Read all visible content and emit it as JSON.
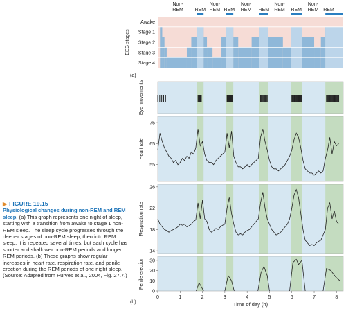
{
  "caption": {
    "figure_label": "FIGURE 19.15",
    "heading": "Physiological changes during non-REM and REM sleep.",
    "body": "(a) This graph represents one night of sleep, starting with a transition from awake to stage 1 non-REM sleep. The sleep cycle progresses through the deeper stages of non-REM sleep, then into REM sleep. It is repeated several times, but each cycle has shorter and shallower non-REM periods and longer REM periods. (b) These graphs show regular increases in heart rate, respiration rate, and penile erection during the REM periods of one night sleep. (Source: Adapted from Purves et al., 2004, Fig. 27.7.)"
  },
  "colors": {
    "rem_band": "#c4dcc0",
    "panel_bg": "#d6e7f2",
    "bar_blue": "#8fb8d9",
    "bar_pink": "#f6dcd6",
    "line": "#222222",
    "rem_bar": "#2a7fc1"
  },
  "chart_data": {
    "type": "line",
    "x_label": "Time of day (h)",
    "x_ticks": [
      0,
      1,
      2,
      3,
      4,
      5,
      6,
      7,
      8
    ],
    "xlim": [
      0,
      8.3
    ],
    "rem_periods": [
      [
        1.75,
        2.05
      ],
      [
        3.05,
        3.38
      ],
      [
        4.55,
        4.95
      ],
      [
        5.95,
        6.45
      ],
      [
        7.5,
        8.3
      ]
    ],
    "nonrem_labels": [
      {
        "x": 0.9,
        "text": "Non-\nREM"
      },
      {
        "x": 2.55,
        "text": "Non-\nREM"
      },
      {
        "x": 3.95,
        "text": "Non-\nREM"
      },
      {
        "x": 5.45,
        "text": "Non-\nREM"
      },
      {
        "x": 6.95,
        "text": "Non-\nREM"
      }
    ],
    "rem_labels": [
      {
        "x": 1.9,
        "text": "REM"
      },
      {
        "x": 3.2,
        "text": "REM"
      },
      {
        "x": 4.75,
        "text": "REM"
      },
      {
        "x": 6.2,
        "text": "REM"
      },
      {
        "x": 7.65,
        "text": "REM"
      }
    ],
    "panel_a": {
      "label": "(a)",
      "y_title": "EEG stages",
      "stages": [
        "Awake",
        "Stage 1",
        "Stage 2",
        "Stage 3",
        "Stage 4"
      ],
      "hypnogram": [
        [
          0,
          0.1,
          0
        ],
        [
          0.1,
          0.2,
          1
        ],
        [
          0.2,
          0.3,
          2
        ],
        [
          0.3,
          0.4,
          3
        ],
        [
          0.4,
          1.3,
          4
        ],
        [
          1.3,
          1.5,
          3
        ],
        [
          1.5,
          1.75,
          2
        ],
        [
          1.75,
          2.05,
          1
        ],
        [
          2.05,
          2.2,
          2
        ],
        [
          2.2,
          2.45,
          3
        ],
        [
          2.45,
          2.85,
          4
        ],
        [
          2.85,
          3.05,
          2
        ],
        [
          3.05,
          3.38,
          1
        ],
        [
          3.38,
          3.6,
          2
        ],
        [
          3.6,
          4.2,
          3
        ],
        [
          4.2,
          4.55,
          2
        ],
        [
          4.55,
          4.95,
          1
        ],
        [
          4.95,
          5.6,
          2
        ],
        [
          5.6,
          5.95,
          3
        ],
        [
          5.95,
          6.45,
          1
        ],
        [
          6.45,
          7.0,
          2
        ],
        [
          7.0,
          7.3,
          3
        ],
        [
          7.3,
          7.5,
          2
        ],
        [
          7.5,
          8.3,
          1
        ]
      ]
    },
    "panel_b": {
      "label": "(b)",
      "eye_movements": {
        "y_title": "Eye movements",
        "bursts": [
          [
            0.0,
            0.35,
            5
          ],
          [
            1.8,
            1.95,
            6
          ],
          [
            3.1,
            3.35,
            12
          ],
          [
            4.6,
            4.9,
            10
          ],
          [
            6.0,
            6.45,
            18
          ],
          [
            7.55,
            8.1,
            20
          ]
        ]
      },
      "heart_rate": {
        "y_title": "Heart rate",
        "yticks": [
          55,
          65,
          75
        ],
        "ylim": [
          47,
          78
        ],
        "x": [
          0,
          0.1,
          0.2,
          0.3,
          0.4,
          0.5,
          0.6,
          0.7,
          0.8,
          0.9,
          1.0,
          1.1,
          1.2,
          1.3,
          1.4,
          1.5,
          1.6,
          1.7,
          1.8,
          1.9,
          2.0,
          2.1,
          2.2,
          2.3,
          2.4,
          2.5,
          2.6,
          2.7,
          2.8,
          2.9,
          3.0,
          3.1,
          3.2,
          3.3,
          3.4,
          3.5,
          3.6,
          3.7,
          3.8,
          3.9,
          4.0,
          4.1,
          4.2,
          4.3,
          4.4,
          4.5,
          4.6,
          4.7,
          4.8,
          4.9,
          5.0,
          5.1,
          5.2,
          5.3,
          5.4,
          5.5,
          5.6,
          5.7,
          5.8,
          5.9,
          6.0,
          6.1,
          6.2,
          6.3,
          6.4,
          6.5,
          6.6,
          6.7,
          6.8,
          6.9,
          7.0,
          7.1,
          7.2,
          7.3,
          7.4,
          7.5,
          7.6,
          7.7,
          7.8,
          7.9,
          8.0,
          8.1
        ],
        "y": [
          62,
          70,
          66,
          63,
          61,
          59,
          58,
          56,
          57,
          55,
          56,
          58,
          57,
          59,
          58,
          61,
          60,
          63,
          72,
          64,
          66,
          60,
          57,
          56,
          56,
          55,
          57,
          58,
          59,
          60,
          61,
          70,
          63,
          71,
          59,
          56,
          54,
          54,
          53,
          54,
          55,
          54,
          55,
          56,
          57,
          58,
          68,
          72,
          66,
          62,
          57,
          54,
          53,
          53,
          52,
          53,
          54,
          55,
          57,
          59,
          62,
          67,
          70,
          68,
          63,
          57,
          53,
          52,
          51,
          51,
          50,
          51,
          52,
          51,
          52,
          58,
          62,
          68,
          60,
          66,
          64,
          65
        ]
      },
      "respiration_rate": {
        "y_title": "Respiration rate",
        "yticks": [
          14,
          18,
          22,
          26
        ],
        "ylim": [
          13.5,
          26.5
        ],
        "x": [
          0,
          0.1,
          0.2,
          0.3,
          0.4,
          0.5,
          0.6,
          0.7,
          0.8,
          0.9,
          1.0,
          1.1,
          1.2,
          1.3,
          1.4,
          1.5,
          1.6,
          1.7,
          1.8,
          1.9,
          2.0,
          2.1,
          2.2,
          2.3,
          2.4,
          2.5,
          2.6,
          2.7,
          2.8,
          2.9,
          3.0,
          3.1,
          3.2,
          3.3,
          3.4,
          3.5,
          3.6,
          3.7,
          3.8,
          3.9,
          4.0,
          4.1,
          4.2,
          4.3,
          4.4,
          4.5,
          4.6,
          4.7,
          4.8,
          4.9,
          5.0,
          5.1,
          5.2,
          5.3,
          5.4,
          5.5,
          5.6,
          5.7,
          5.8,
          5.9,
          6.0,
          6.1,
          6.2,
          6.3,
          6.4,
          6.5,
          6.6,
          6.7,
          6.8,
          6.9,
          7.0,
          7.1,
          7.2,
          7.3,
          7.4,
          7.5,
          7.6,
          7.7,
          7.8,
          7.9,
          8.0,
          8.1
        ],
        "y": [
          20,
          19,
          18.5,
          18,
          17.8,
          17.5,
          17.8,
          18,
          18.2,
          18.5,
          19,
          18.8,
          19,
          18.5,
          18.7,
          19,
          19.5,
          19.8,
          23,
          20,
          23.5,
          20,
          19.5,
          18,
          17.5,
          17.8,
          18.2,
          18,
          18.5,
          18.8,
          19,
          22,
          24,
          21,
          19,
          17.5,
          17,
          17.2,
          17,
          17.5,
          17.8,
          18,
          18.5,
          19,
          19.5,
          20,
          23,
          25,
          22,
          20,
          19,
          18,
          17.5,
          17,
          17.2,
          17.5,
          18,
          18.5,
          19,
          20,
          22,
          24.5,
          25.5,
          24,
          21,
          18,
          16,
          15.5,
          15,
          15.2,
          15,
          15.5,
          15.8,
          16,
          17,
          18,
          22,
          23,
          20,
          21.5,
          19.5,
          19
        ]
      },
      "penile_erection": {
        "y_title": "Penile erection",
        "yticks": [
          0,
          10,
          20,
          30
        ],
        "ylim": [
          0,
          34
        ],
        "segments": [
          {
            "x": [
              1.72,
              1.85,
              1.95,
              2.05
            ],
            "y": [
              0,
              8,
              4,
              0
            ]
          },
          {
            "x": [
              3.0,
              3.15,
              3.3,
              3.42
            ],
            "y": [
              0,
              15,
              10,
              0
            ]
          },
          {
            "x": [
              4.48,
              4.62,
              4.75,
              4.9,
              5.0
            ],
            "y": [
              0,
              18,
              24,
              15,
              0
            ]
          },
          {
            "x": [
              5.9,
              6.05,
              6.2,
              6.3,
              6.45,
              6.6
            ],
            "y": [
              0,
              28,
              31,
              26,
              30,
              0
            ]
          },
          {
            "x": [
              7.4,
              7.55,
              7.75,
              7.95,
              8.15
            ],
            "y": [
              0,
              22,
              20,
              14,
              10
            ]
          }
        ]
      }
    }
  }
}
